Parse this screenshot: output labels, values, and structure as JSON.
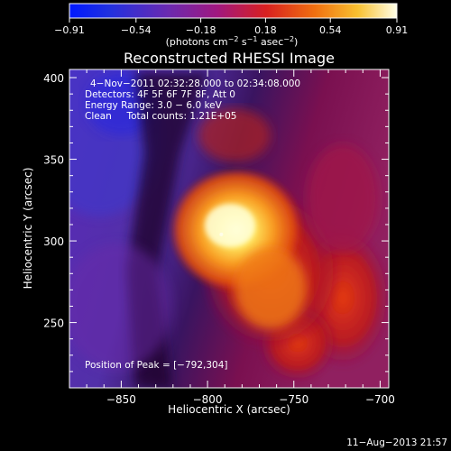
{
  "chart_data": {
    "type": "heatmap",
    "title": "Reconstructed RHESSI Image",
    "xlabel": "Heliocentric X (arcsec)",
    "ylabel": "Heliocentric Y (arcsec)",
    "xlim": [
      -880,
      -695
    ],
    "ylim": [
      210,
      405
    ],
    "x_ticks": [
      -850,
      -800,
      -750,
      -700
    ],
    "x_tick_labels": [
      "−850",
      "−800",
      "−750",
      "−700"
    ],
    "y_ticks": [
      250,
      300,
      350,
      400
    ],
    "y_tick_labels": [
      "250",
      "300",
      "350",
      "400"
    ],
    "colorbar": {
      "range": [
        -0.91,
        0.91
      ],
      "ticks": [
        -0.91,
        -0.54,
        -0.18,
        0.18,
        0.54,
        0.91
      ],
      "tick_labels": [
        "−0.91",
        "−0.54",
        "−0.18",
        "0.18",
        "0.54",
        "0.91"
      ],
      "units_text": "(photons cm",
      "units_exp1": "−2",
      "units_mid": " s",
      "units_exp2": "−1",
      "units_mid2": " asec",
      "units_exp3": "−2",
      "units_end": ")"
    },
    "annotations": {
      "time_range": "4−Nov−2011 02:32:28.000 to 02:34:08.000",
      "detectors": "Detectors: 4F 5F 6F 7F 8F, Att 0",
      "energy": "Energy Range: 3.0 − 6.0 keV",
      "clean": "Clean     Total counts: 1.21E+05",
      "peak": "Position of Peak = [−792,304]"
    },
    "peak": {
      "x": -792,
      "y": 304
    },
    "timestamp": "11−Aug−2013 21:57"
  }
}
